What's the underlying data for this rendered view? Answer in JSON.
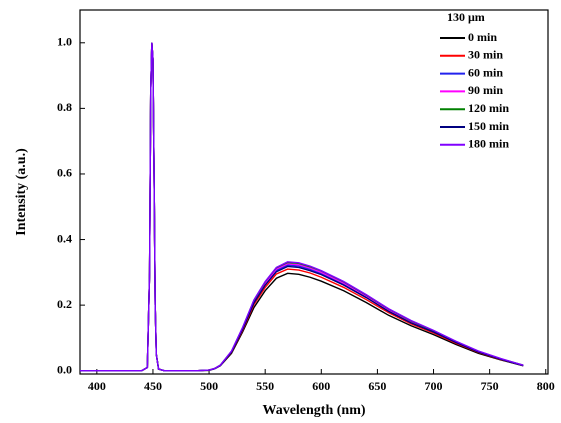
{
  "chart_data": {
    "type": "line",
    "x_label": "Wavelength (nm)",
    "y_label": "Intensity (a.u.)",
    "legend_title": "130 μm",
    "legend": "upper right",
    "xlim": [
      385,
      802
    ],
    "ylim": [
      -0.01,
      1.1
    ],
    "xticks": [
      400,
      450,
      500,
      550,
      600,
      650,
      700,
      750,
      800
    ],
    "yticks": [
      {
        "value": 0,
        "label": "0.0"
      },
      {
        "value": 0.2,
        "label": "0.2"
      },
      {
        "value": 0.4,
        "label": "0.4"
      },
      {
        "value": 0.6,
        "label": "0.6"
      },
      {
        "value": 0.8,
        "label": "0.8"
      },
      {
        "value": 1,
        "label": "1.0"
      }
    ],
    "x": [
      385,
      400,
      420,
      440,
      445,
      447,
      448,
      449,
      450,
      451,
      452,
      453,
      455,
      460,
      480,
      490,
      500,
      505,
      510,
      520,
      530,
      540,
      550,
      560,
      570,
      580,
      590,
      600,
      620,
      640,
      660,
      680,
      700,
      720,
      740,
      760,
      780
    ],
    "series": [
      {
        "name": "0 min",
        "color": "#000000",
        "values": [
          0,
          0,
          0,
          0,
          0.01,
          0.3,
          0.85,
          1.0,
          0.95,
          0.6,
          0.2,
          0.05,
          0.005,
          0,
          0,
          0,
          0.001,
          0.006,
          0.015,
          0.053,
          0.119,
          0.193,
          0.244,
          0.282,
          0.297,
          0.294,
          0.285,
          0.273,
          0.244,
          0.208,
          0.169,
          0.137,
          0.11,
          0.08,
          0.053,
          0.033,
          0.015
        ]
      },
      {
        "name": "30 min",
        "color": "#ff0000",
        "values": [
          0,
          0,
          0,
          0,
          0.01,
          0.3,
          0.85,
          1.0,
          0.95,
          0.6,
          0.2,
          0.05,
          0.005,
          0,
          0,
          0,
          0.002,
          0.006,
          0.016,
          0.056,
          0.124,
          0.202,
          0.254,
          0.295,
          0.31,
          0.307,
          0.298,
          0.285,
          0.254,
          0.217,
          0.177,
          0.143,
          0.115,
          0.084,
          0.056,
          0.034,
          0.016
        ]
      },
      {
        "name": "60 min",
        "color": "#2222ee",
        "values": [
          0,
          0,
          0,
          0,
          0.01,
          0.3,
          0.85,
          1.0,
          0.95,
          0.6,
          0.2,
          0.05,
          0.005,
          0,
          0,
          0,
          0.002,
          0.006,
          0.016,
          0.058,
          0.129,
          0.209,
          0.264,
          0.306,
          0.322,
          0.319,
          0.309,
          0.296,
          0.264,
          0.225,
          0.184,
          0.148,
          0.119,
          0.087,
          0.058,
          0.035,
          0.016
        ]
      },
      {
        "name": "90 min",
        "color": "#ff00ff",
        "values": [
          0,
          0,
          0,
          0,
          0.01,
          0.3,
          0.85,
          1.0,
          0.95,
          0.6,
          0.2,
          0.05,
          0.005,
          0,
          0,
          0,
          0.002,
          0.007,
          0.016,
          0.059,
          0.13,
          0.212,
          0.267,
          0.31,
          0.326,
          0.323,
          0.313,
          0.3,
          0.267,
          0.228,
          0.186,
          0.15,
          0.121,
          0.088,
          0.059,
          0.036,
          0.016
        ]
      },
      {
        "name": "120 min",
        "color": "#008000",
        "values": [
          0,
          0,
          0,
          0,
          0.01,
          0.3,
          0.85,
          1.0,
          0.95,
          0.6,
          0.2,
          0.05,
          0.005,
          0,
          0,
          0,
          0.002,
          0.007,
          0.017,
          0.059,
          0.132,
          0.215,
          0.271,
          0.314,
          0.33,
          0.327,
          0.317,
          0.304,
          0.271,
          0.231,
          0.188,
          0.152,
          0.122,
          0.089,
          0.059,
          0.036,
          0.017
        ]
      },
      {
        "name": "150 min",
        "color": "#000080",
        "values": [
          0,
          0,
          0,
          0,
          0.01,
          0.3,
          0.85,
          1.0,
          0.95,
          0.6,
          0.2,
          0.05,
          0.005,
          0,
          0,
          0,
          0.002,
          0.006,
          0.016,
          0.057,
          0.127,
          0.207,
          0.261,
          0.302,
          0.318,
          0.315,
          0.305,
          0.293,
          0.261,
          0.223,
          0.181,
          0.146,
          0.118,
          0.086,
          0.057,
          0.035,
          0.016
        ]
      },
      {
        "name": "180 min",
        "color": "#8000ff",
        "values": [
          0,
          0,
          0,
          0,
          0.01,
          0.3,
          0.85,
          1.0,
          0.95,
          0.6,
          0.2,
          0.05,
          0.005,
          0,
          0,
          0,
          0.002,
          0.007,
          0.017,
          0.06,
          0.133,
          0.216,
          0.272,
          0.315,
          0.332,
          0.329,
          0.319,
          0.305,
          0.272,
          0.232,
          0.189,
          0.153,
          0.123,
          0.09,
          0.06,
          0.037,
          0.017
        ]
      }
    ]
  }
}
